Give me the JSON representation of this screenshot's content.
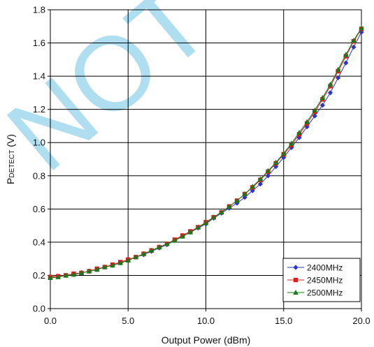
{
  "chart_data": {
    "type": "line",
    "title": "",
    "xlabel": "Output Power (dBm)",
    "ylabel_main": "P",
    "ylabel_sub": "DETECT",
    "ylabel_unit": " (V)",
    "xlim": [
      0,
      20
    ],
    "ylim": [
      0,
      1.8
    ],
    "x_ticks": [
      0,
      5,
      10,
      15,
      20
    ],
    "x_tick_labels": [
      "0.0",
      "5.0",
      "10.0",
      "15.0",
      "20.0"
    ],
    "y_ticks": [
      0,
      0.2,
      0.4,
      0.6,
      0.8,
      1.0,
      1.2,
      1.4,
      1.6,
      1.8
    ],
    "y_tick_labels": [
      "0.0",
      "0.2",
      "0.4",
      "0.6",
      "0.8",
      "1.0",
      "1.2",
      "1.4",
      "1.6",
      "1.8"
    ],
    "grid": true,
    "legend_position": "bottom-right",
    "watermark": "NOT",
    "watermark_color": "#6cc3e2",
    "x": [
      0,
      0.5,
      1,
      1.5,
      2,
      2.5,
      3,
      3.5,
      4,
      4.5,
      5,
      5.5,
      6,
      6.5,
      7,
      7.5,
      8,
      8.5,
      9,
      9.5,
      10,
      10.5,
      11,
      11.5,
      12,
      12.5,
      13,
      13.5,
      14,
      14.5,
      15,
      15.5,
      16,
      16.5,
      17,
      17.5,
      18,
      18.5,
      19,
      19.5,
      20
    ],
    "series": [
      {
        "name": "2400MHz",
        "color": "#2b35c8",
        "marker": "diamond",
        "values": [
          0.19,
          0.195,
          0.2,
          0.205,
          0.215,
          0.225,
          0.235,
          0.25,
          0.26,
          0.275,
          0.29,
          0.31,
          0.325,
          0.345,
          0.365,
          0.385,
          0.41,
          0.435,
          0.46,
          0.485,
          0.51,
          0.545,
          0.575,
          0.605,
          0.635,
          0.67,
          0.71,
          0.75,
          0.8,
          0.855,
          0.91,
          0.97,
          1.03,
          1.095,
          1.16,
          1.225,
          1.3,
          1.39,
          1.48,
          1.575,
          1.665
        ]
      },
      {
        "name": "2450MHz",
        "color": "#e01b1b",
        "marker": "square",
        "values": [
          0.19,
          0.195,
          0.2,
          0.21,
          0.215,
          0.225,
          0.24,
          0.25,
          0.265,
          0.28,
          0.295,
          0.31,
          0.33,
          0.35,
          0.37,
          0.39,
          0.415,
          0.44,
          0.465,
          0.49,
          0.52,
          0.55,
          0.58,
          0.615,
          0.65,
          0.69,
          0.73,
          0.775,
          0.825,
          0.875,
          0.93,
          0.985,
          1.05,
          1.115,
          1.185,
          1.26,
          1.34,
          1.43,
          1.52,
          1.61,
          1.685
        ]
      },
      {
        "name": "2500MHz",
        "color": "#1a7a1a",
        "marker": "triangle",
        "values": [
          0.185,
          0.19,
          0.2,
          0.205,
          0.215,
          0.225,
          0.235,
          0.25,
          0.26,
          0.275,
          0.29,
          0.31,
          0.33,
          0.35,
          0.37,
          0.39,
          0.41,
          0.435,
          0.46,
          0.49,
          0.515,
          0.55,
          0.58,
          0.615,
          0.65,
          0.69,
          0.735,
          0.78,
          0.83,
          0.88,
          0.935,
          0.995,
          1.06,
          1.125,
          1.195,
          1.27,
          1.35,
          1.44,
          1.53,
          1.615,
          1.69
        ]
      }
    ]
  }
}
